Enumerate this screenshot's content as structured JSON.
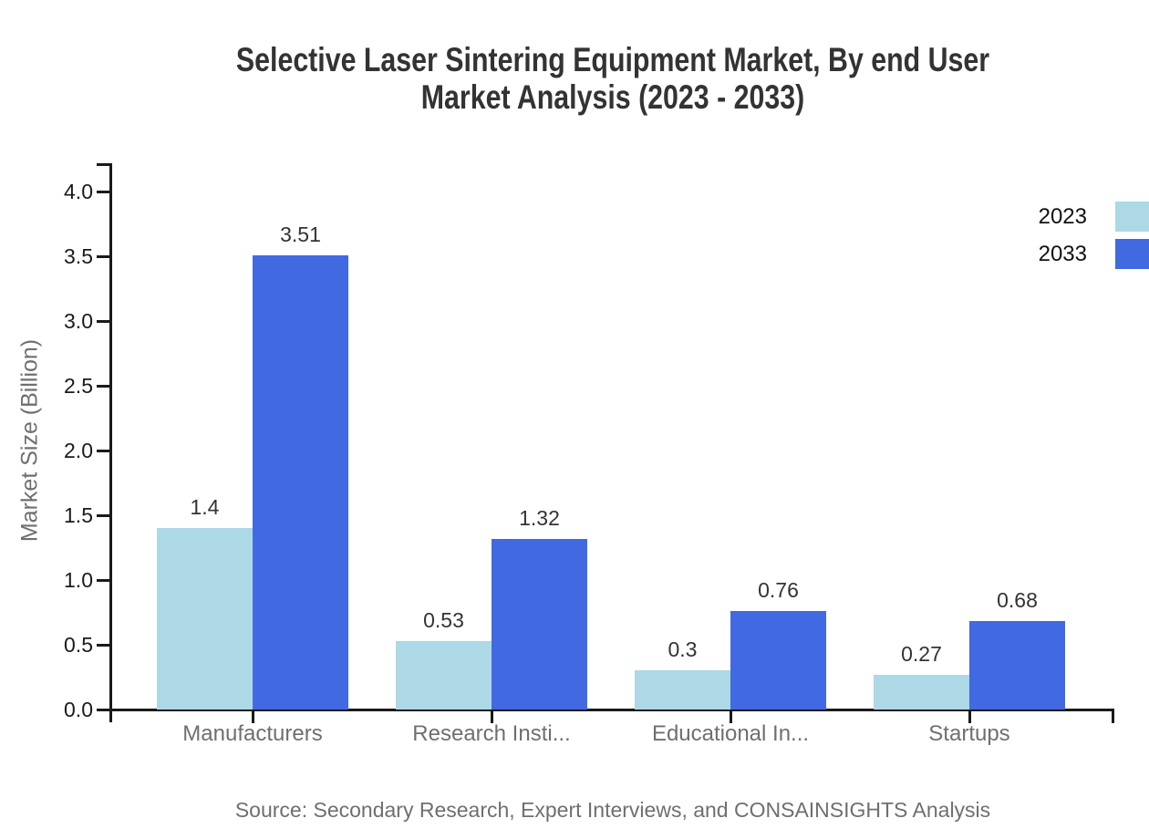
{
  "title": {
    "line1": "Selective Laser Sintering Equipment Market, By end User",
    "line2": "Market Analysis (2023 - 2033)"
  },
  "chart_data": {
    "type": "bar",
    "categories": [
      "Manufacturers",
      "Research Insti...",
      "Educational In...",
      "Startups"
    ],
    "series": [
      {
        "name": "2023",
        "color": "#ADD8E6",
        "values": [
          1.4,
          0.53,
          0.3,
          0.27
        ]
      },
      {
        "name": "2033",
        "color": "#4169E1",
        "values": [
          3.51,
          1.32,
          0.76,
          0.68
        ]
      }
    ],
    "title": "Selective Laser Sintering Equipment Market, By end User Market Analysis (2023 - 2033)",
    "xlabel": "",
    "ylabel": "Market Size (Billion)",
    "ylim": [
      0,
      4.0
    ],
    "ytick_step": 0.5,
    "ytick_labels": [
      "0.0",
      "0.5",
      "1.0",
      "1.5",
      "2.0",
      "2.5",
      "3.0",
      "3.5",
      "4.0"
    ],
    "grid": false,
    "legend_position": "top-right",
    "bar_value_labels": [
      "1.4",
      "3.51",
      "0.53",
      "1.32",
      "0.3",
      "0.76",
      "0.27",
      "0.68"
    ]
  },
  "source": "Source: Secondary Research, Expert Interviews, and CONSAINSIGHTS Analysis",
  "colors": {
    "background": "#ffffff",
    "series_2023": "#ADD8E6",
    "series_2033": "#4169E1",
    "axis": "#1a1a1a",
    "tick_label": "#1a1a1a",
    "value_label": "#333333",
    "category_label": "#6f6f6f",
    "axis_title": "#6f6f6f",
    "title": "#333333",
    "source": "#6f6f6f"
  }
}
